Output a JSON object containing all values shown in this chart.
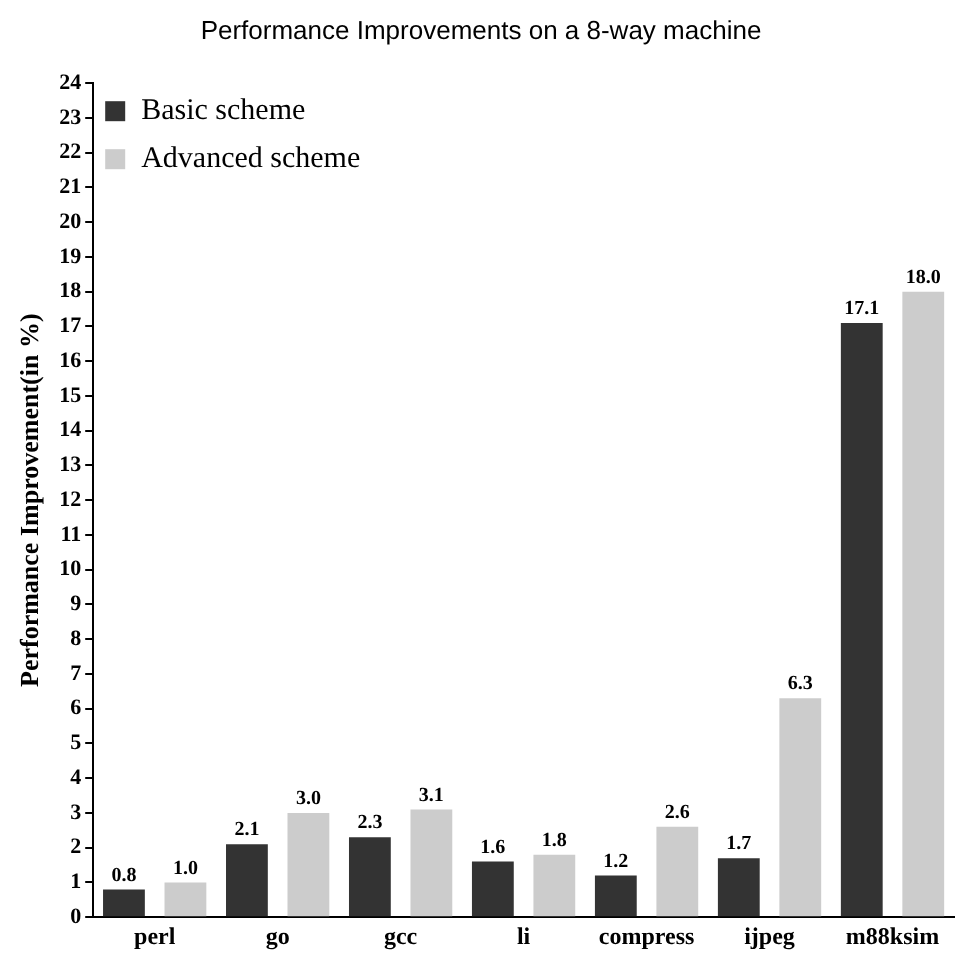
{
  "chart_data": {
    "type": "bar",
    "title": "Performance Improvements on a 8-way machine",
    "ylabel": "Performance Improvement(in %)",
    "categories": [
      "perl",
      "go",
      "gcc",
      "li",
      "compress",
      "ijpeg",
      "m88ksim"
    ],
    "series": [
      {
        "name": "Basic scheme",
        "color": "#333333",
        "values": [
          0.8,
          2.1,
          2.3,
          1.6,
          1.2,
          1.7,
          17.1
        ],
        "value_labels": [
          "0.8",
          "2.1",
          "2.3",
          "1.6",
          "1.2",
          "1.7",
          "17.1"
        ]
      },
      {
        "name": "Advanced scheme",
        "color": "#cccccc",
        "values": [
          1.0,
          3.0,
          3.1,
          1.8,
          2.6,
          6.3,
          18.0
        ],
        "value_labels": [
          "1.0",
          "3.0",
          "3.1",
          "1.8",
          "2.6",
          "6.3",
          "18.0"
        ]
      }
    ],
    "ylim": [
      0,
      24
    ],
    "yticks": [
      0,
      1,
      2,
      3,
      4,
      5,
      6,
      7,
      8,
      9,
      10,
      11,
      12,
      13,
      14,
      15,
      16,
      17,
      18,
      19,
      20,
      21,
      22,
      23,
      24
    ],
    "legend": "top left",
    "grid": false
  }
}
